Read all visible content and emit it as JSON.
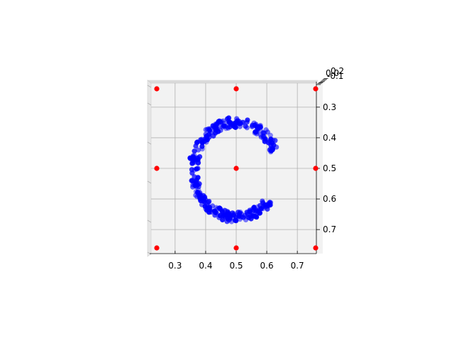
{
  "chart_data": {
    "type": "scatter",
    "projection": "3d",
    "title": "",
    "xlabel": "",
    "ylabel": "",
    "zlabel": "",
    "xlim": [
      0.24,
      0.76
    ],
    "ylim": [
      0.24,
      0.76
    ],
    "x_ticks": [
      "0.3",
      "0.4",
      "0.5",
      "0.6",
      "0.7"
    ],
    "y_ticks": [
      "0.3",
      "0.4",
      "0.5",
      "0.6",
      "0.7"
    ],
    "z_ticks": [
      "0.2",
      "0.0",
      "-0.1"
    ],
    "grid": true,
    "pane_color": "#f2f2f2",
    "series": [
      {
        "marker_color": "#0000ff",
        "shape": "letter C ring",
        "center": [
          0.5,
          0.505
        ],
        "radius_x": 0.14,
        "radius_y": 0.155,
        "opening_angle_start_deg": -40,
        "opening_angle_end_deg": 25,
        "point_count": 320
      },
      {
        "marker_color": "#ff0000",
        "points": [
          [
            0.24,
            0.24
          ],
          [
            0.5,
            0.24
          ],
          [
            0.76,
            0.24
          ],
          [
            0.24,
            0.5
          ],
          [
            0.5,
            0.5
          ],
          [
            0.76,
            0.5
          ],
          [
            0.24,
            0.76
          ],
          [
            0.5,
            0.76
          ],
          [
            0.76,
            0.76
          ]
        ]
      }
    ]
  }
}
